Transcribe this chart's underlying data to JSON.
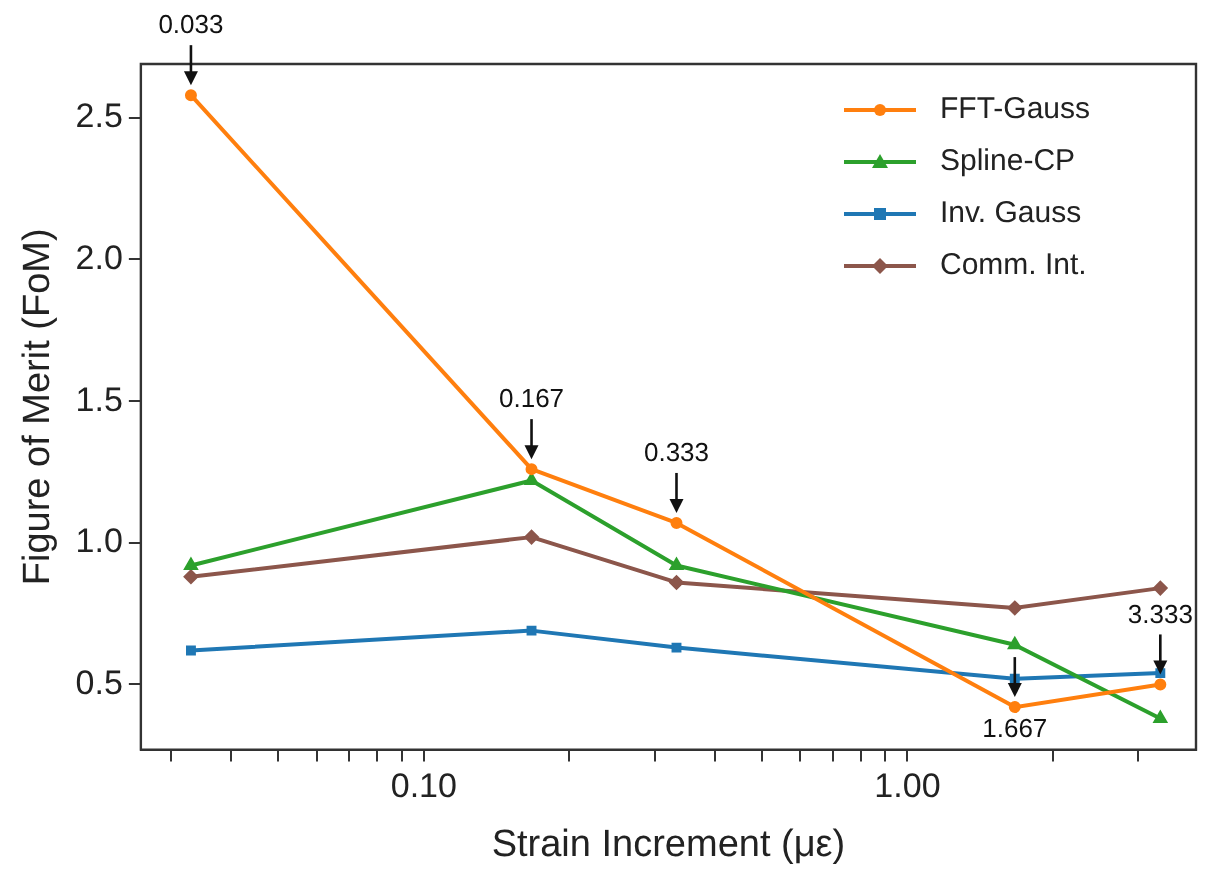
{
  "chart_data": {
    "type": "line",
    "xlabel": "Strain Increment (με)",
    "ylabel": "Figure of Merit (FoM)",
    "x": [
      0.033,
      0.167,
      0.333,
      1.667,
      3.333
    ],
    "series": [
      {
        "name": "FFT-Gauss",
        "color": "#ff7f0e",
        "marker": "circle",
        "values": [
          2.58,
          1.26,
          1.07,
          0.42,
          0.5
        ]
      },
      {
        "name": "Spline-CP",
        "color": "#2ca02c",
        "marker": "triangle",
        "values": [
          0.92,
          1.22,
          0.92,
          0.64,
          0.38
        ]
      },
      {
        "name": "Inv. Gauss",
        "color": "#1f77b4",
        "marker": "square",
        "values": [
          0.62,
          0.69,
          0.63,
          0.52,
          0.54
        ]
      },
      {
        "name": "Comm. Int.",
        "color": "#8c564b",
        "marker": "diamond",
        "values": [
          0.88,
          1.02,
          0.86,
          0.77,
          0.84
        ]
      }
    ],
    "log": "x",
    "xlim": [
      0.026,
      3.95
    ],
    "ylim": [
      0.27,
      2.69
    ],
    "xticks": [
      {
        "value": 0.03,
        "label": null
      },
      {
        "value": 0.04,
        "label": null
      },
      {
        "value": 0.05,
        "label": null
      },
      {
        "value": 0.06,
        "label": null
      },
      {
        "value": 0.07,
        "label": null
      },
      {
        "value": 0.08,
        "label": null
      },
      {
        "value": 0.09,
        "label": null
      },
      {
        "value": 0.1,
        "label": "0.10"
      },
      {
        "value": 0.2,
        "label": null
      },
      {
        "value": 0.3,
        "label": null
      },
      {
        "value": 0.4,
        "label": null
      },
      {
        "value": 0.5,
        "label": null
      },
      {
        "value": 0.6,
        "label": null
      },
      {
        "value": 0.7,
        "label": null
      },
      {
        "value": 0.8,
        "label": null
      },
      {
        "value": 0.9,
        "label": null
      },
      {
        "value": 1,
        "label": "1.00"
      },
      {
        "value": 2,
        "label": null
      },
      {
        "value": 3,
        "label": null
      }
    ],
    "yticks": [
      {
        "value": 0.5,
        "label": "0.5"
      },
      {
        "value": 1,
        "label": "1.0"
      },
      {
        "value": 1.5,
        "label": "1.5"
      },
      {
        "value": 2,
        "label": "2.0"
      },
      {
        "value": 2.5,
        "label": "2.5"
      }
    ],
    "grid": false,
    "legend": "top right",
    "line_style": "solid",
    "annotations": [
      {
        "text": "0.033",
        "x": 0.033,
        "y": 2.58
      },
      {
        "text": "0.167",
        "x": 0.167,
        "y": 1.26
      },
      {
        "text": "0.333",
        "x": 0.333,
        "y": 1.07
      },
      {
        "text": "1.667",
        "x": 1.667,
        "y": 0.42
      },
      {
        "text": "3.333",
        "x": 3.333,
        "y": 0.5
      }
    ]
  }
}
